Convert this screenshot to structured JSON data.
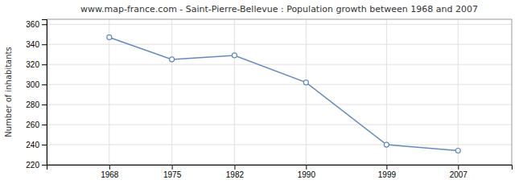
{
  "chart_data": {
    "type": "line",
    "title": "www.map-france.com - Saint-Pierre-Bellevue : Population growth between 1968 and 2007",
    "ylabel": "Number of inhabitants",
    "x": [
      1968,
      1975,
      1982,
      1990,
      1999,
      2007
    ],
    "values": [
      347,
      325,
      329,
      302,
      240,
      234
    ],
    "color": "#6688bb",
    "marker": "circle",
    "xlim": [
      1961,
      2013
    ],
    "xticks": [
      1968,
      1975,
      1982,
      1990,
      1999,
      2007
    ],
    "ylim": [
      220,
      365
    ],
    "yticks": [
      220,
      240,
      260,
      280,
      300,
      320,
      340,
      360
    ],
    "grid": true
  }
}
